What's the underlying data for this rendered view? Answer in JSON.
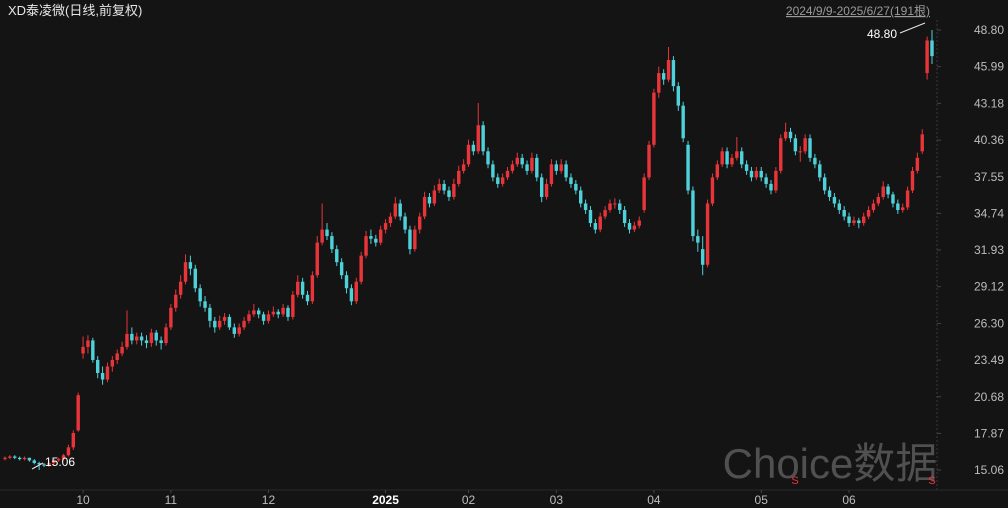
{
  "chart_data": {
    "type": "candlestick",
    "title": "XD泰凌微(日线,前复权)",
    "subtitle": "2024/9/9-2025/6/27(191根)",
    "watermark": "Choice数据",
    "high_label": "48.80",
    "low_label": "15.06",
    "markers": [
      "S",
      "S"
    ],
    "up_color": "#e8353a",
    "down_color": "#4fd1d9",
    "ylim": [
      13.53,
      49.57
    ],
    "yticks": [
      15.06,
      17.87,
      20.68,
      23.49,
      {
        "value": 26.3,
        "label": "26.30"
      },
      29.12,
      31.93,
      34.74,
      37.55,
      40.36,
      43.18,
      45.99,
      {
        "value": 48.8,
        "label": "48.80"
      }
    ],
    "xlim": [
      0,
      190
    ],
    "xticks": [
      {
        "value": 16,
        "label": "10"
      },
      {
        "value": 34,
        "label": "11"
      },
      {
        "value": 54,
        "label": "12"
      },
      {
        "value": 78,
        "label": "2025"
      },
      {
        "value": 95,
        "label": "02"
      },
      {
        "value": 113,
        "label": "03"
      },
      {
        "value": 133,
        "label": "04"
      },
      {
        "value": 155,
        "label": "05"
      },
      {
        "value": 173,
        "label": "06"
      }
    ],
    "values": [
      [
        15.9,
        16.1,
        15.8,
        16.0
      ],
      [
        16.0,
        16.2,
        15.9,
        16.1
      ],
      [
        16.1,
        16.2,
        15.9,
        16.0
      ],
      [
        16.0,
        16.1,
        15.8,
        15.9
      ],
      [
        15.9,
        16.1,
        15.8,
        16.0
      ],
      [
        16.0,
        16.0,
        15.7,
        15.8
      ],
      [
        15.8,
        15.9,
        15.5,
        15.6
      ],
      [
        15.6,
        15.7,
        15.06,
        15.5
      ],
      [
        15.5,
        15.6,
        15.3,
        15.4
      ],
      [
        15.4,
        15.7,
        15.3,
        15.6
      ],
      [
        15.6,
        15.9,
        15.5,
        15.8
      ],
      [
        15.8,
        16.0,
        15.7,
        15.9
      ],
      [
        15.9,
        16.3,
        15.8,
        16.2
      ],
      [
        16.2,
        17.0,
        16.1,
        16.8
      ],
      [
        16.8,
        18.1,
        16.6,
        17.9
      ],
      [
        18.1,
        21.0,
        18.0,
        20.8
      ],
      [
        24.0,
        25.3,
        23.6,
        24.5
      ],
      [
        24.5,
        25.4,
        24.0,
        25.0
      ],
      [
        25.0,
        25.2,
        23.3,
        23.5
      ],
      [
        23.5,
        23.8,
        22.1,
        22.5
      ],
      [
        22.5,
        23.0,
        21.6,
        22.0
      ],
      [
        22.0,
        23.3,
        21.8,
        23.0
      ],
      [
        23.0,
        23.8,
        22.6,
        23.5
      ],
      [
        23.5,
        24.3,
        23.2,
        24.0
      ],
      [
        24.0,
        24.9,
        23.8,
        24.5
      ],
      [
        24.5,
        27.3,
        24.3,
        25.5
      ],
      [
        25.5,
        26.0,
        24.7,
        25.0
      ],
      [
        25.0,
        25.6,
        24.7,
        25.3
      ],
      [
        25.3,
        25.6,
        24.6,
        25.0
      ],
      [
        25.0,
        25.4,
        24.4,
        24.8
      ],
      [
        24.8,
        25.9,
        24.5,
        25.6
      ],
      [
        25.6,
        25.8,
        24.6,
        25.0
      ],
      [
        25.0,
        25.3,
        24.3,
        24.8
      ],
      [
        24.8,
        26.3,
        24.6,
        26.0
      ],
      [
        26.0,
        27.8,
        25.8,
        27.5
      ],
      [
        27.5,
        28.9,
        27.2,
        28.5
      ],
      [
        28.5,
        30.0,
        28.2,
        29.5
      ],
      [
        29.5,
        31.6,
        29.3,
        31.0
      ],
      [
        31.0,
        31.5,
        30.0,
        30.5
      ],
      [
        30.5,
        30.8,
        28.7,
        29.0
      ],
      [
        29.0,
        29.3,
        27.6,
        28.0
      ],
      [
        28.0,
        28.4,
        27.2,
        27.5
      ],
      [
        27.5,
        27.8,
        26.0,
        26.5
      ],
      [
        26.5,
        26.8,
        25.6,
        26.0
      ],
      [
        26.0,
        26.9,
        25.8,
        26.5
      ],
      [
        26.5,
        27.1,
        26.2,
        26.8
      ],
      [
        26.8,
        27.0,
        25.8,
        26.0
      ],
      [
        26.0,
        26.3,
        25.2,
        25.5
      ],
      [
        25.5,
        26.3,
        25.3,
        26.0
      ],
      [
        26.0,
        26.8,
        25.8,
        26.5
      ],
      [
        26.5,
        27.3,
        26.3,
        27.0
      ],
      [
        27.0,
        27.8,
        26.8,
        27.3
      ],
      [
        27.3,
        27.5,
        26.7,
        27.0
      ],
      [
        27.0,
        27.2,
        26.2,
        26.5
      ],
      [
        26.5,
        27.3,
        26.3,
        27.0
      ],
      [
        27.0,
        27.6,
        26.8,
        27.2
      ],
      [
        27.2,
        27.4,
        26.7,
        27.0
      ],
      [
        27.0,
        27.8,
        26.8,
        27.5
      ],
      [
        27.5,
        27.7,
        26.5,
        26.8
      ],
      [
        26.8,
        28.8,
        26.6,
        28.5
      ],
      [
        28.5,
        30.0,
        28.3,
        29.5
      ],
      [
        29.5,
        29.8,
        28.2,
        28.5
      ],
      [
        28.5,
        28.8,
        27.7,
        28.0
      ],
      [
        28.0,
        30.3,
        27.8,
        30.0
      ],
      [
        30.0,
        33.0,
        29.8,
        32.5
      ],
      [
        32.5,
        35.5,
        32.3,
        33.5
      ],
      [
        33.5,
        34.0,
        32.7,
        33.0
      ],
      [
        33.0,
        33.3,
        31.7,
        32.0
      ],
      [
        32.0,
        32.3,
        30.7,
        31.0
      ],
      [
        31.0,
        31.3,
        29.7,
        30.0
      ],
      [
        30.0,
        30.3,
        28.6,
        29.0
      ],
      [
        29.0,
        29.3,
        27.7,
        28.0
      ],
      [
        28.0,
        29.8,
        27.8,
        29.5
      ],
      [
        29.5,
        31.8,
        29.3,
        31.5
      ],
      [
        31.5,
        33.4,
        31.3,
        33.0
      ],
      [
        33.0,
        33.5,
        32.4,
        32.8
      ],
      [
        32.8,
        33.1,
        32.2,
        32.5
      ],
      [
        32.5,
        33.8,
        32.3,
        33.5
      ],
      [
        33.5,
        34.3,
        33.2,
        34.0
      ],
      [
        34.0,
        34.8,
        33.7,
        34.5
      ],
      [
        34.5,
        36.0,
        34.3,
        35.5
      ],
      [
        35.5,
        35.8,
        34.2,
        34.5
      ],
      [
        34.5,
        34.8,
        33.2,
        33.5
      ],
      [
        33.5,
        33.8,
        31.6,
        32.0
      ],
      [
        32.0,
        33.8,
        31.8,
        33.5
      ],
      [
        33.5,
        34.8,
        33.2,
        34.5
      ],
      [
        34.5,
        36.4,
        34.3,
        36.0
      ],
      [
        36.0,
        36.3,
        35.2,
        35.5
      ],
      [
        35.5,
        36.9,
        35.3,
        36.5
      ],
      [
        36.5,
        37.4,
        36.3,
        37.0
      ],
      [
        37.0,
        37.3,
        36.2,
        36.5
      ],
      [
        36.5,
        36.8,
        35.7,
        36.0
      ],
      [
        36.0,
        37.4,
        35.8,
        37.0
      ],
      [
        37.0,
        38.4,
        36.8,
        38.0
      ],
      [
        38.0,
        38.9,
        37.8,
        38.5
      ],
      [
        38.5,
        40.4,
        38.3,
        40.0
      ],
      [
        40.0,
        40.3,
        39.2,
        39.5
      ],
      [
        39.5,
        43.2,
        39.3,
        41.5
      ],
      [
        41.5,
        41.8,
        39.2,
        39.5
      ],
      [
        39.5,
        39.8,
        38.2,
        38.5
      ],
      [
        38.5,
        38.8,
        37.2,
        37.5
      ],
      [
        37.5,
        37.8,
        36.7,
        37.0
      ],
      [
        37.0,
        37.8,
        36.8,
        37.5
      ],
      [
        37.5,
        38.3,
        37.3,
        38.0
      ],
      [
        38.0,
        38.8,
        37.8,
        38.5
      ],
      [
        38.5,
        39.4,
        38.3,
        39.0
      ],
      [
        39.0,
        39.3,
        38.2,
        38.5
      ],
      [
        38.5,
        38.8,
        37.7,
        38.0
      ],
      [
        38.0,
        39.4,
        37.8,
        39.0
      ],
      [
        39.0,
        39.3,
        37.2,
        37.5
      ],
      [
        37.5,
        37.8,
        35.6,
        36.0
      ],
      [
        36.0,
        37.4,
        35.8,
        37.0
      ],
      [
        37.0,
        38.9,
        36.8,
        38.5
      ],
      [
        38.5,
        38.8,
        37.7,
        38.0
      ],
      [
        38.0,
        38.9,
        37.8,
        38.5
      ],
      [
        38.5,
        38.8,
        37.2,
        37.5
      ],
      [
        37.5,
        37.8,
        36.7,
        37.0
      ],
      [
        37.0,
        37.3,
        36.2,
        36.5
      ],
      [
        36.5,
        36.8,
        35.2,
        35.5
      ],
      [
        35.5,
        35.8,
        34.7,
        35.0
      ],
      [
        35.0,
        35.3,
        33.7,
        34.0
      ],
      [
        34.0,
        34.3,
        33.2,
        33.5
      ],
      [
        33.5,
        34.8,
        33.3,
        34.5
      ],
      [
        34.5,
        35.3,
        34.3,
        35.0
      ],
      [
        35.0,
        35.8,
        34.8,
        35.5
      ],
      [
        35.5,
        35.9,
        35.1,
        35.5
      ],
      [
        35.5,
        35.8,
        34.7,
        35.0
      ],
      [
        35.0,
        35.3,
        33.7,
        34.0
      ],
      [
        34.0,
        34.3,
        33.2,
        33.5
      ],
      [
        33.5,
        34.1,
        33.3,
        33.8
      ],
      [
        33.8,
        34.5,
        33.6,
        34.2
      ],
      [
        35.0,
        37.8,
        34.8,
        37.5
      ],
      [
        37.5,
        40.3,
        37.3,
        40.0
      ],
      [
        40.0,
        44.3,
        39.8,
        44.0
      ],
      [
        44.0,
        46.0,
        43.6,
        45.5
      ],
      [
        45.5,
        45.8,
        44.6,
        45.0
      ],
      [
        45.0,
        47.5,
        44.8,
        46.5
      ],
      [
        46.5,
        46.8,
        44.1,
        44.5
      ],
      [
        44.5,
        44.8,
        42.6,
        43.0
      ],
      [
        43.0,
        43.3,
        40.2,
        40.5
      ],
      [
        40.0,
        40.3,
        36.2,
        36.5
      ],
      [
        36.5,
        36.8,
        32.6,
        33.0
      ],
      [
        33.0,
        33.5,
        31.8,
        32.5
      ],
      [
        32.0,
        33.0,
        30.0,
        30.8
      ],
      [
        30.8,
        35.8,
        30.6,
        35.5
      ],
      [
        35.5,
        37.8,
        35.3,
        37.5
      ],
      [
        37.5,
        38.8,
        37.3,
        38.5
      ],
      [
        38.5,
        39.8,
        38.3,
        39.5
      ],
      [
        39.5,
        39.8,
        38.2,
        38.5
      ],
      [
        38.5,
        39.3,
        38.3,
        39.0
      ],
      [
        39.0,
        40.6,
        38.8,
        39.5
      ],
      [
        39.5,
        39.8,
        38.2,
        38.5
      ],
      [
        38.5,
        38.8,
        37.7,
        38.0
      ],
      [
        38.0,
        38.3,
        37.2,
        37.5
      ],
      [
        37.5,
        38.3,
        37.3,
        38.0
      ],
      [
        38.0,
        38.3,
        37.2,
        37.5
      ],
      [
        37.5,
        37.8,
        36.7,
        37.0
      ],
      [
        37.0,
        37.3,
        36.2,
        36.5
      ],
      [
        36.5,
        38.3,
        36.3,
        38.0
      ],
      [
        38.0,
        40.8,
        37.8,
        40.5
      ],
      [
        40.5,
        41.7,
        40.3,
        41.0
      ],
      [
        41.0,
        41.3,
        40.2,
        40.5
      ],
      [
        40.5,
        40.8,
        39.2,
        39.5
      ],
      [
        39.5,
        39.9,
        38.7,
        39.5
      ],
      [
        39.5,
        40.8,
        39.3,
        40.5
      ],
      [
        40.5,
        40.8,
        38.7,
        39.0
      ],
      [
        39.0,
        39.3,
        38.2,
        38.5
      ],
      [
        38.5,
        38.8,
        37.2,
        37.5
      ],
      [
        37.5,
        37.8,
        36.2,
        36.5
      ],
      [
        36.5,
        36.8,
        35.7,
        36.0
      ],
      [
        36.0,
        36.3,
        35.2,
        35.5
      ],
      [
        35.5,
        35.8,
        34.7,
        35.0
      ],
      [
        35.0,
        35.3,
        34.2,
        34.5
      ],
      [
        34.5,
        34.8,
        33.7,
        34.0
      ],
      [
        34.0,
        34.5,
        33.8,
        34.2
      ],
      [
        34.2,
        34.4,
        33.6,
        34.0
      ],
      [
        34.0,
        34.8,
        33.8,
        34.5
      ],
      [
        34.5,
        35.3,
        34.3,
        35.0
      ],
      [
        35.0,
        35.8,
        34.8,
        35.5
      ],
      [
        35.5,
        36.3,
        35.3,
        36.0
      ],
      [
        36.0,
        37.2,
        35.8,
        36.8
      ],
      [
        36.8,
        37.0,
        35.9,
        36.2
      ],
      [
        36.2,
        36.4,
        35.2,
        35.5
      ],
      [
        35.5,
        35.8,
        34.7,
        35.0
      ],
      [
        35.0,
        35.5,
        34.8,
        35.2
      ],
      [
        35.2,
        36.8,
        35.0,
        36.5
      ],
      [
        36.5,
        38.3,
        36.3,
        38.0
      ],
      [
        38.0,
        39.4,
        37.8,
        39.0
      ],
      [
        39.5,
        41.2,
        39.3,
        40.8
      ],
      [
        45.5,
        48.3,
        45.0,
        48.0
      ],
      [
        48.0,
        48.8,
        46.2,
        46.8
      ]
    ]
  }
}
